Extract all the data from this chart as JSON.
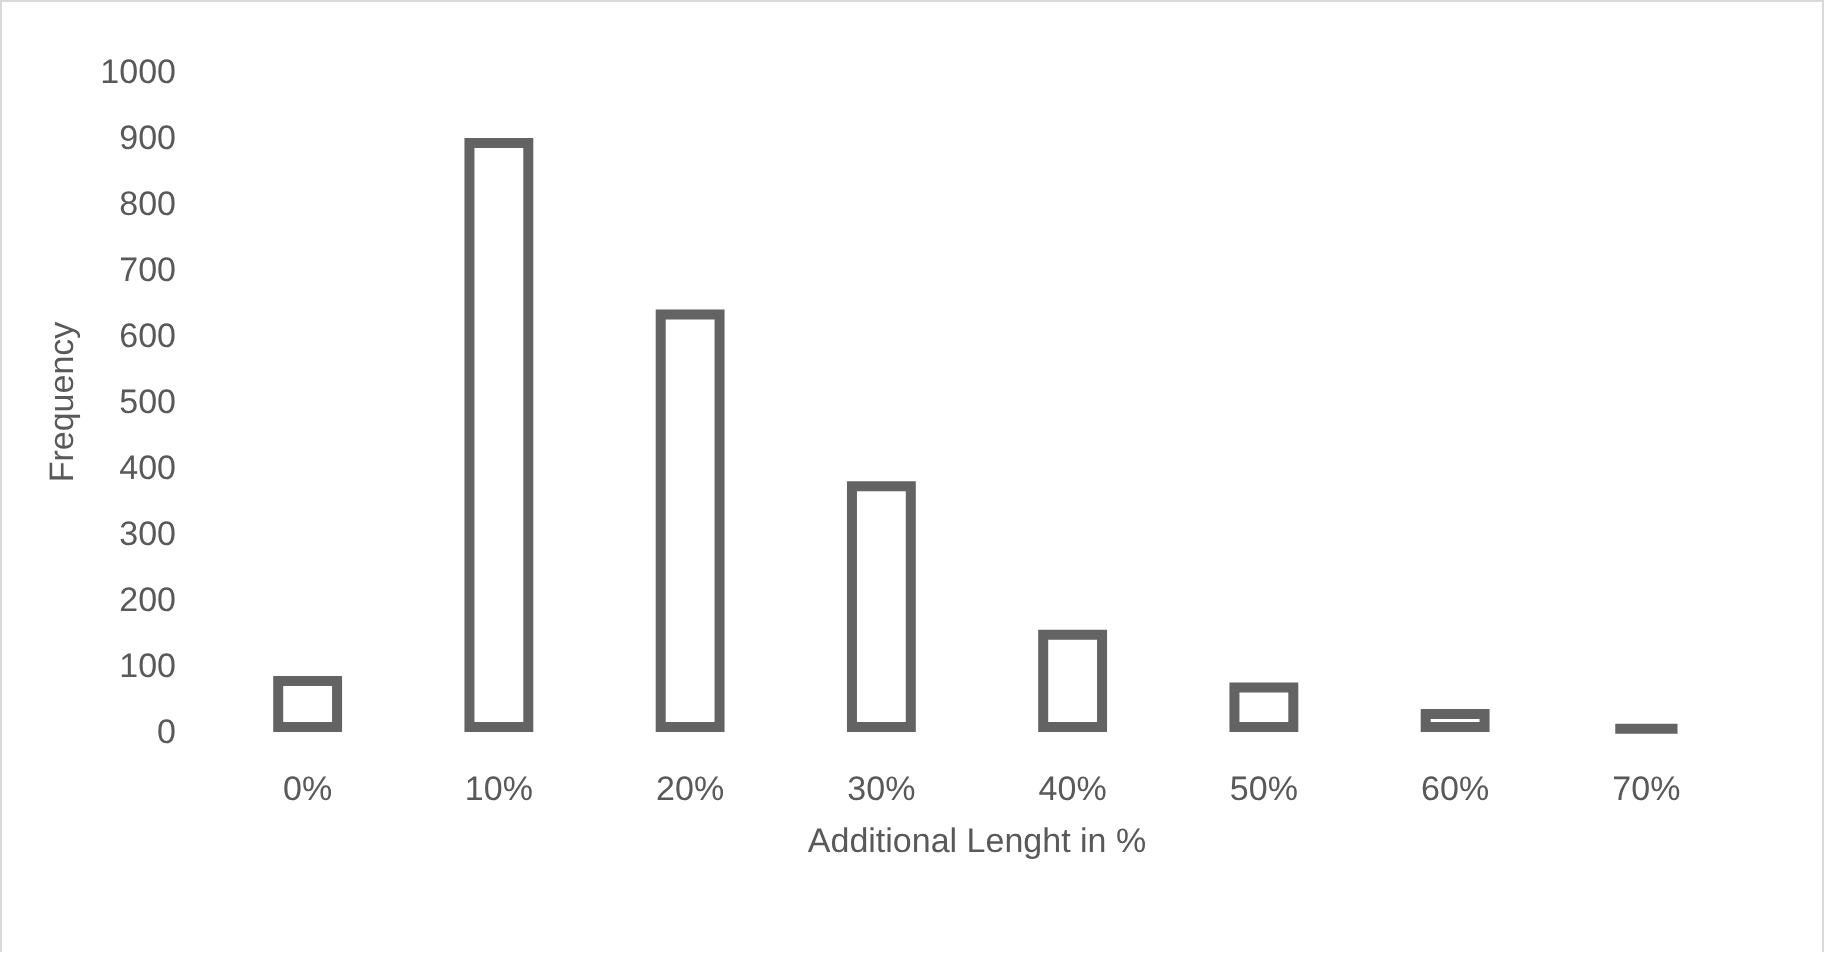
{
  "chart_data": {
    "type": "bar",
    "xlabel": "Additional Lenght in %",
    "ylabel": "Frequency",
    "categories": [
      "0%",
      "10%",
      "20%",
      "30%",
      "40%",
      "50%",
      "60%",
      "70%"
    ],
    "values": [
      85,
      900,
      640,
      380,
      155,
      75,
      35,
      10
    ],
    "color": "#636363",
    "ylim": [
      0,
      1000
    ],
    "yticks": [
      0,
      100,
      200,
      300,
      400,
      500,
      600,
      700,
      800,
      900,
      1000
    ],
    "grid": false
  }
}
